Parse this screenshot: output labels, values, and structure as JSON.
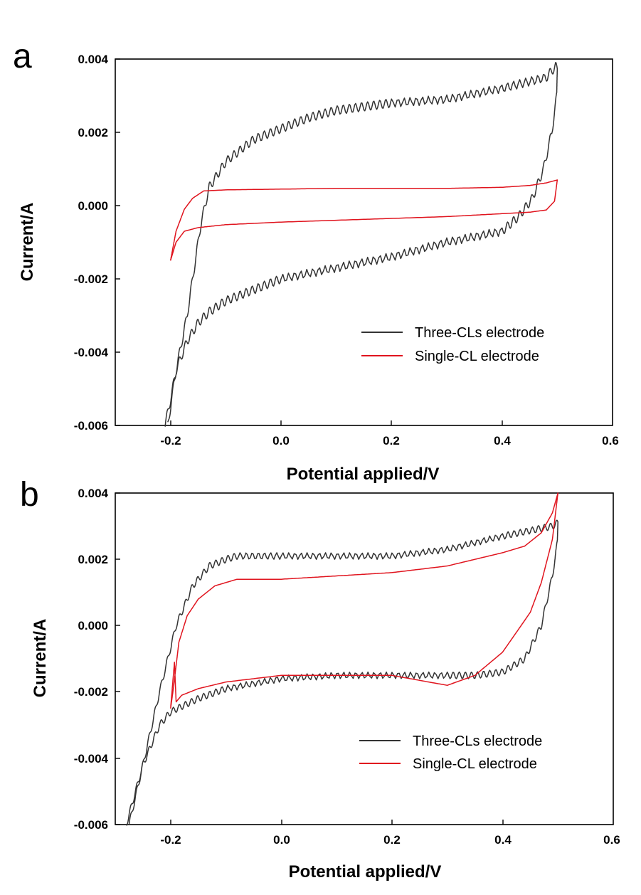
{
  "chart_data": [
    {
      "panel": "a",
      "type": "line",
      "xlabel": "Potential applied/V",
      "ylabel": "Current/A",
      "xlim": [
        -0.3,
        0.6
      ],
      "ylim": [
        -0.006,
        0.004
      ],
      "xticks": [
        -0.2,
        0.0,
        0.2,
        0.4,
        0.6
      ],
      "xtick_labels": [
        "-0.2",
        "0.0",
        "0.2",
        "0.4",
        "0.6"
      ],
      "yticks": [
        0.004,
        0.002,
        0.0,
        -0.002,
        -0.004,
        -0.006
      ],
      "ytick_labels": [
        "0.004",
        "0.002",
        "0.000",
        "-0.002",
        "-0.004",
        "-0.006"
      ],
      "legend_position": "lower-right",
      "series": [
        {
          "name": "Three-CLs electrode",
          "color": "#333333",
          "ripple": 0.00012,
          "x": [
            -0.205,
            -0.19,
            -0.17,
            -0.155,
            -0.145,
            -0.13,
            -0.1,
            -0.05,
            0.0,
            0.05,
            0.1,
            0.15,
            0.2,
            0.3,
            0.4,
            0.48,
            0.497,
            0.5,
            0.499,
            0.49,
            0.475,
            0.455,
            0.43,
            0.4,
            0.3,
            0.2,
            0.1,
            0.0,
            -0.05,
            -0.1,
            -0.13,
            -0.15,
            -0.17,
            -0.19,
            -0.2,
            -0.21
          ],
          "y": [
            -0.006,
            -0.0045,
            -0.003,
            -0.0015,
            -0.0005,
            0.0005,
            0.0012,
            0.0018,
            0.0021,
            0.0024,
            0.0026,
            0.0027,
            0.0028,
            0.0029,
            0.0032,
            0.0035,
            0.0038,
            0.0037,
            0.003,
            0.002,
            0.001,
            0.0002,
            -0.0003,
            -0.0007,
            -0.001,
            -0.0014,
            -0.0017,
            -0.002,
            -0.0023,
            -0.0026,
            -0.0029,
            -0.0032,
            -0.0037,
            -0.0045,
            -0.0053,
            -0.006
          ]
        },
        {
          "name": "Single-CL electrode",
          "color": "#e0141e",
          "ripple": 0,
          "x": [
            -0.2,
            -0.19,
            -0.175,
            -0.16,
            -0.14,
            -0.1,
            0.0,
            0.1,
            0.2,
            0.3,
            0.4,
            0.45,
            0.48,
            0.495,
            0.5,
            0.495,
            0.48,
            0.45,
            0.4,
            0.3,
            0.2,
            0.1,
            0.0,
            -0.1,
            -0.15,
            -0.175,
            -0.19,
            -0.2
          ],
          "y": [
            -0.0015,
            -0.0007,
            -0.0001,
            0.0002,
            0.0004,
            0.00043,
            0.00045,
            0.00047,
            0.00047,
            0.00047,
            0.0005,
            0.00055,
            0.00062,
            0.00068,
            0.0007,
            0.00012,
            -0.00012,
            -0.00018,
            -0.00022,
            -0.0003,
            -0.00035,
            -0.0004,
            -0.00045,
            -0.00052,
            -0.0006,
            -0.0007,
            -0.001,
            -0.0015
          ]
        }
      ]
    },
    {
      "panel": "b",
      "type": "line",
      "xlabel": "Potential applied/V",
      "ylabel": "Current/A",
      "xlim": [
        -0.3,
        0.6
      ],
      "ylim": [
        -0.006,
        0.004
      ],
      "xticks": [
        -0.2,
        0.0,
        0.2,
        0.4,
        0.6
      ],
      "xtick_labels": [
        "-0.2",
        "0.0",
        "0.2",
        "0.4",
        "0.6"
      ],
      "yticks": [
        0.004,
        0.002,
        0.0,
        -0.002,
        -0.004,
        -0.006
      ],
      "ytick_labels": [
        "0.004",
        "0.002",
        "0.000",
        "-0.002",
        "-0.004",
        "-0.006"
      ],
      "legend_position": "lower-right",
      "series": [
        {
          "name": "Three-CLs electrode",
          "color": "#333333",
          "ripple": 0.0001,
          "x": [
            -0.28,
            -0.25,
            -0.22,
            -0.19,
            -0.16,
            -0.13,
            -0.1,
            -0.08,
            0.0,
            0.1,
            0.2,
            0.3,
            0.4,
            0.46,
            0.49,
            0.5,
            0.499,
            0.49,
            0.47,
            0.44,
            0.4,
            0.35,
            0.3,
            0.2,
            0.1,
            0.0,
            -0.1,
            -0.15,
            -0.2,
            -0.22,
            -0.25,
            -0.275
          ],
          "y": [
            -0.006,
            -0.0042,
            -0.002,
            0.0,
            0.0012,
            0.0018,
            0.002,
            0.0021,
            0.0021,
            0.0021,
            0.0021,
            0.0023,
            0.0027,
            0.0029,
            0.003,
            0.0031,
            0.0025,
            0.0015,
            0.0,
            -0.001,
            -0.0014,
            -0.0015,
            -0.0015,
            -0.0015,
            -0.0015,
            -0.0016,
            -0.0019,
            -0.0022,
            -0.0026,
            -0.003,
            -0.0042,
            -0.006
          ]
        },
        {
          "name": "Single-CL electrode",
          "color": "#e0141e",
          "ripple": 0,
          "x": [
            -0.2,
            -0.195,
            -0.19,
            -0.185,
            -0.17,
            -0.15,
            -0.12,
            -0.08,
            0.0,
            0.1,
            0.2,
            0.3,
            0.35,
            0.4,
            0.44,
            0.47,
            0.49,
            0.5,
            0.49,
            0.47,
            0.45,
            0.4,
            0.35,
            0.3,
            0.2,
            0.1,
            0.0,
            -0.1,
            -0.15,
            -0.18,
            -0.19,
            -0.193,
            -0.2
          ],
          "y": [
            -0.0025,
            -0.0019,
            -0.0012,
            -0.0005,
            0.0003,
            0.0008,
            0.0012,
            0.0014,
            0.0014,
            0.0015,
            0.0016,
            0.0018,
            0.002,
            0.0022,
            0.0024,
            0.0028,
            0.0034,
            0.004,
            0.0026,
            0.0013,
            0.0004,
            -0.0008,
            -0.0015,
            -0.0018,
            -0.0015,
            -0.0015,
            -0.0015,
            -0.0017,
            -0.0019,
            -0.0021,
            -0.0023,
            -0.0011,
            -0.0025
          ]
        }
      ]
    }
  ]
}
